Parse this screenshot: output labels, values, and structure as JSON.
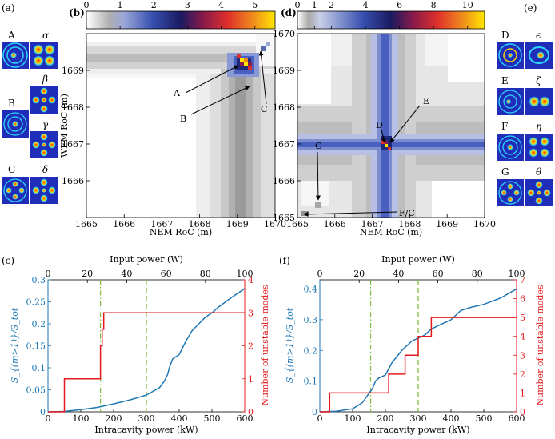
{
  "panel_labels": {
    "a": "(a)",
    "b": "(b)",
    "c": "(c)",
    "d": "(d)",
    "e": "(e)",
    "f": "(f)"
  },
  "colors": {
    "blue": "#1f77b4",
    "red": "#e31a1c",
    "green": "#7dbb3a",
    "map_low": "#ffffff",
    "map_high": "#ffe600"
  },
  "mode_panels": {
    "a": {
      "rows": [
        {
          "label": "A",
          "greek": "α"
        },
        {
          "greek": "β"
        },
        {
          "label": "B",
          "greek": "γ"
        },
        {
          "label": "C",
          "greek": "δ"
        }
      ]
    },
    "e": {
      "rows": [
        {
          "label": "D",
          "greek": "ϵ"
        },
        {
          "label": "E",
          "greek": "ζ"
        },
        {
          "label": "F",
          "greek": "η"
        },
        {
          "label": "G",
          "greek": "θ"
        }
      ]
    }
  },
  "chart_data": [
    {
      "id": "b",
      "type": "heatmap",
      "xlabel": "NEM RoC (m)",
      "ylabel": "WEM RoC (m)",
      "xlim": [
        1665,
        1670
      ],
      "ylim": [
        1665,
        1670
      ],
      "xticks": [
        "1665",
        "1666",
        "1667",
        "1668",
        "1669",
        "1670"
      ],
      "yticks": [
        "1666",
        "1667",
        "1668",
        "1669"
      ],
      "colorbar": {
        "ticks": [
          "0",
          "1",
          "2",
          "3",
          "4",
          "5"
        ],
        "range": [
          0,
          5.6
        ]
      },
      "hotspots": [
        {
          "x": 1669.2,
          "y": 1669.4,
          "value": 5.6
        },
        {
          "x": 1669.75,
          "y": 1669.5,
          "value": 1.0
        }
      ],
      "annotations": [
        {
          "text": "A",
          "x": 1669.2,
          "y": 1669.35
        },
        {
          "text": "B",
          "x": 1669.35,
          "y": 1669.1
        },
        {
          "text": "C",
          "x": 1669.75,
          "y": 1669.55
        }
      ]
    },
    {
      "id": "d",
      "type": "heatmap",
      "xlabel": "NEM RoC (m)",
      "ylabel": "",
      "xlim": [
        1665,
        1670
      ],
      "ylim": [
        1665,
        1670
      ],
      "xticks": [
        "1665",
        "1666",
        "1667",
        "1668",
        "1669",
        "1670"
      ],
      "yticks": [
        "1665",
        "1666",
        "1667",
        "1668",
        "1669",
        "1670"
      ],
      "colorbar": {
        "ticks": [
          "0",
          "1",
          "2",
          "4",
          "6",
          "8",
          "10"
        ],
        "range": [
          0,
          11
        ]
      },
      "hotspots": [
        {
          "x": 1667.05,
          "y": 1667.05,
          "value": 11
        }
      ],
      "annotations": [
        {
          "text": "D",
          "x": 1667.0,
          "y": 1667.05
        },
        {
          "text": "E",
          "x": 1667.15,
          "y": 1666.95
        },
        {
          "text": "G",
          "x": 1665.5,
          "y": 1665.4
        },
        {
          "text": "F/C",
          "x": 1665.1,
          "y": 1665.1
        }
      ]
    },
    {
      "id": "c",
      "type": "line",
      "xlabel": "Intracavity power (kW)",
      "x2label": "Input power (W)",
      "ylabel": "S_{(m>1)}/S_tot",
      "y2label": "Number of unstable modes",
      "xlim": [
        0,
        600
      ],
      "x2ticks": [
        "0",
        "20",
        "40",
        "60",
        "80",
        "100"
      ],
      "xticks": [
        "0",
        "100",
        "200",
        "300",
        "400",
        "500",
        "600"
      ],
      "yticks": [
        "0",
        "0.05",
        "0.1",
        "0.15",
        "0.2",
        "0.25",
        "0.3"
      ],
      "y2ticks": [
        "0",
        "1",
        "2",
        "3",
        "4"
      ],
      "ylim": [
        0,
        0.3
      ],
      "y2lim": [
        0,
        4
      ],
      "vlines": [
        {
          "x": 160,
          "style": "dashdot"
        },
        {
          "x": 300,
          "style": "dashed"
        }
      ],
      "series": [
        {
          "name": "ratio",
          "axis": "left",
          "x": [
            0,
            50,
            100,
            150,
            200,
            250,
            300,
            340,
            355,
            365,
            370,
            380,
            400,
            420,
            440,
            460,
            480,
            500,
            520,
            560,
            600
          ],
          "y": [
            0,
            0.001,
            0.005,
            0.01,
            0.018,
            0.027,
            0.038,
            0.055,
            0.07,
            0.085,
            0.1,
            0.12,
            0.13,
            0.16,
            0.185,
            0.2,
            0.215,
            0.225,
            0.238,
            0.26,
            0.28
          ]
        },
        {
          "name": "unstable modes",
          "axis": "right",
          "x": [
            0,
            50,
            50,
            160,
            160,
            165,
            165,
            170,
            170,
            600
          ],
          "y": [
            0,
            0,
            1,
            1,
            2,
            2,
            2.5,
            2.5,
            3,
            3
          ]
        }
      ]
    },
    {
      "id": "f",
      "type": "line",
      "xlabel": "Intracavity power (kW)",
      "x2label": "Input power (W)",
      "ylabel": "S_{(m>1)}/S_tot",
      "y2label": "Number of unstable modes",
      "xlim": [
        0,
        600
      ],
      "x2ticks": [
        "0",
        "20",
        "40",
        "60",
        "80",
        "100"
      ],
      "xticks": [
        "0",
        "100",
        "200",
        "300",
        "400",
        "500",
        "600"
      ],
      "yticks": [
        "0",
        "0.1",
        "0.2",
        "0.3",
        "0.4"
      ],
      "y2ticks": [
        "0",
        "1",
        "2",
        "3",
        "4",
        "5",
        "6",
        "7"
      ],
      "ylim": [
        0,
        0.43
      ],
      "y2lim": [
        0,
        7
      ],
      "vlines": [
        {
          "x": 155,
          "style": "dashdot"
        },
        {
          "x": 300,
          "style": "dashed"
        }
      ],
      "series": [
        {
          "name": "ratio",
          "axis": "left",
          "x": [
            0,
            50,
            100,
            130,
            150,
            160,
            170,
            180,
            200,
            220,
            250,
            280,
            300,
            320,
            340,
            360,
            380,
            400,
            430,
            460,
            500,
            550,
            600
          ],
          "y": [
            0,
            0.002,
            0.01,
            0.03,
            0.06,
            0.075,
            0.1,
            0.11,
            0.12,
            0.16,
            0.2,
            0.23,
            0.24,
            0.25,
            0.27,
            0.28,
            0.29,
            0.3,
            0.33,
            0.34,
            0.35,
            0.37,
            0.4
          ]
        },
        {
          "name": "unstable modes",
          "axis": "right",
          "x": [
            0,
            30,
            30,
            210,
            210,
            260,
            260,
            300,
            300,
            340,
            340,
            600
          ],
          "y": [
            0,
            0,
            1,
            1,
            2,
            2,
            3,
            3,
            4,
            4,
            5,
            5
          ]
        }
      ]
    }
  ]
}
